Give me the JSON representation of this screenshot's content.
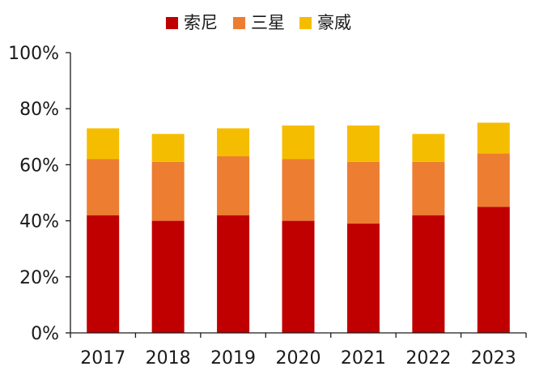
{
  "chart_data": {
    "type": "bar",
    "stacked": true,
    "categories": [
      "2017",
      "2018",
      "2019",
      "2020",
      "2021",
      "2022",
      "2023"
    ],
    "series": [
      {
        "name": "索尼",
        "color": "#C00000",
        "values": [
          42,
          40,
          42,
          40,
          39,
          42,
          45
        ]
      },
      {
        "name": "三星",
        "color": "#ED7D31",
        "values": [
          20,
          21,
          21,
          22,
          22,
          19,
          19
        ]
      },
      {
        "name": "豪威",
        "color": "#F5BD00",
        "values": [
          11,
          10,
          10,
          12,
          13,
          10,
          11
        ]
      }
    ],
    "title": "",
    "xlabel": "",
    "ylabel": "",
    "ylim": [
      0,
      100
    ],
    "y_ticks": [
      "0%",
      "20%",
      "40%",
      "60%",
      "80%",
      "100%"
    ],
    "y_tick_values": [
      0,
      20,
      40,
      60,
      80,
      100
    ],
    "grid": false,
    "legend_position": "top-center"
  }
}
